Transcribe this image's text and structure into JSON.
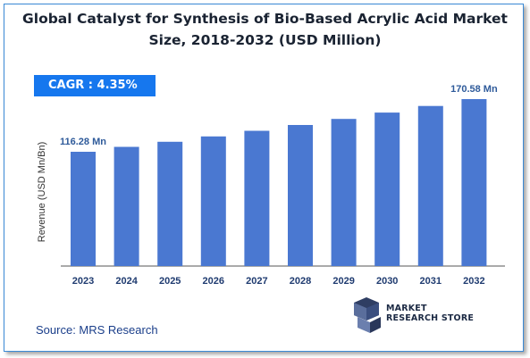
{
  "title_line1": "Global Catalyst for Synthesis of Bio-Based Acrylic Acid Market",
  "title_line2": "Size, 2018-2032 (USD Million)",
  "cagr_label": "CAGR :  4.35%",
  "source": "Source: MRS Research",
  "logo": {
    "line1": "MARKET",
    "line2": "RESEARCH STORE",
    "icon": "market-research-store-logo-icon"
  },
  "colors": {
    "bar": "#4a78d1",
    "accent": "#1677ee",
    "label": "#2e5a9a"
  },
  "chart_data": {
    "type": "bar",
    "title": "Global Catalyst for Synthesis of Bio-Based Acrylic Acid Market Size, 2018-2032 (USD Million)",
    "xlabel": "",
    "ylabel": "Revenue (USD Mn/Bn)",
    "categories": [
      "2023",
      "2024",
      "2025",
      "2026",
      "2027",
      "2028",
      "2029",
      "2030",
      "2031",
      "2032"
    ],
    "values": [
      116.28,
      121.34,
      126.62,
      132.13,
      137.88,
      143.88,
      150.14,
      156.67,
      163.48,
      170.58
    ],
    "data_labels": [
      {
        "index": 0,
        "text": "116.28 Mn"
      },
      {
        "index": 9,
        "text": "170.58 Mn"
      }
    ],
    "ylim": [
      0,
      180
    ],
    "grid": false,
    "legend": "none"
  }
}
